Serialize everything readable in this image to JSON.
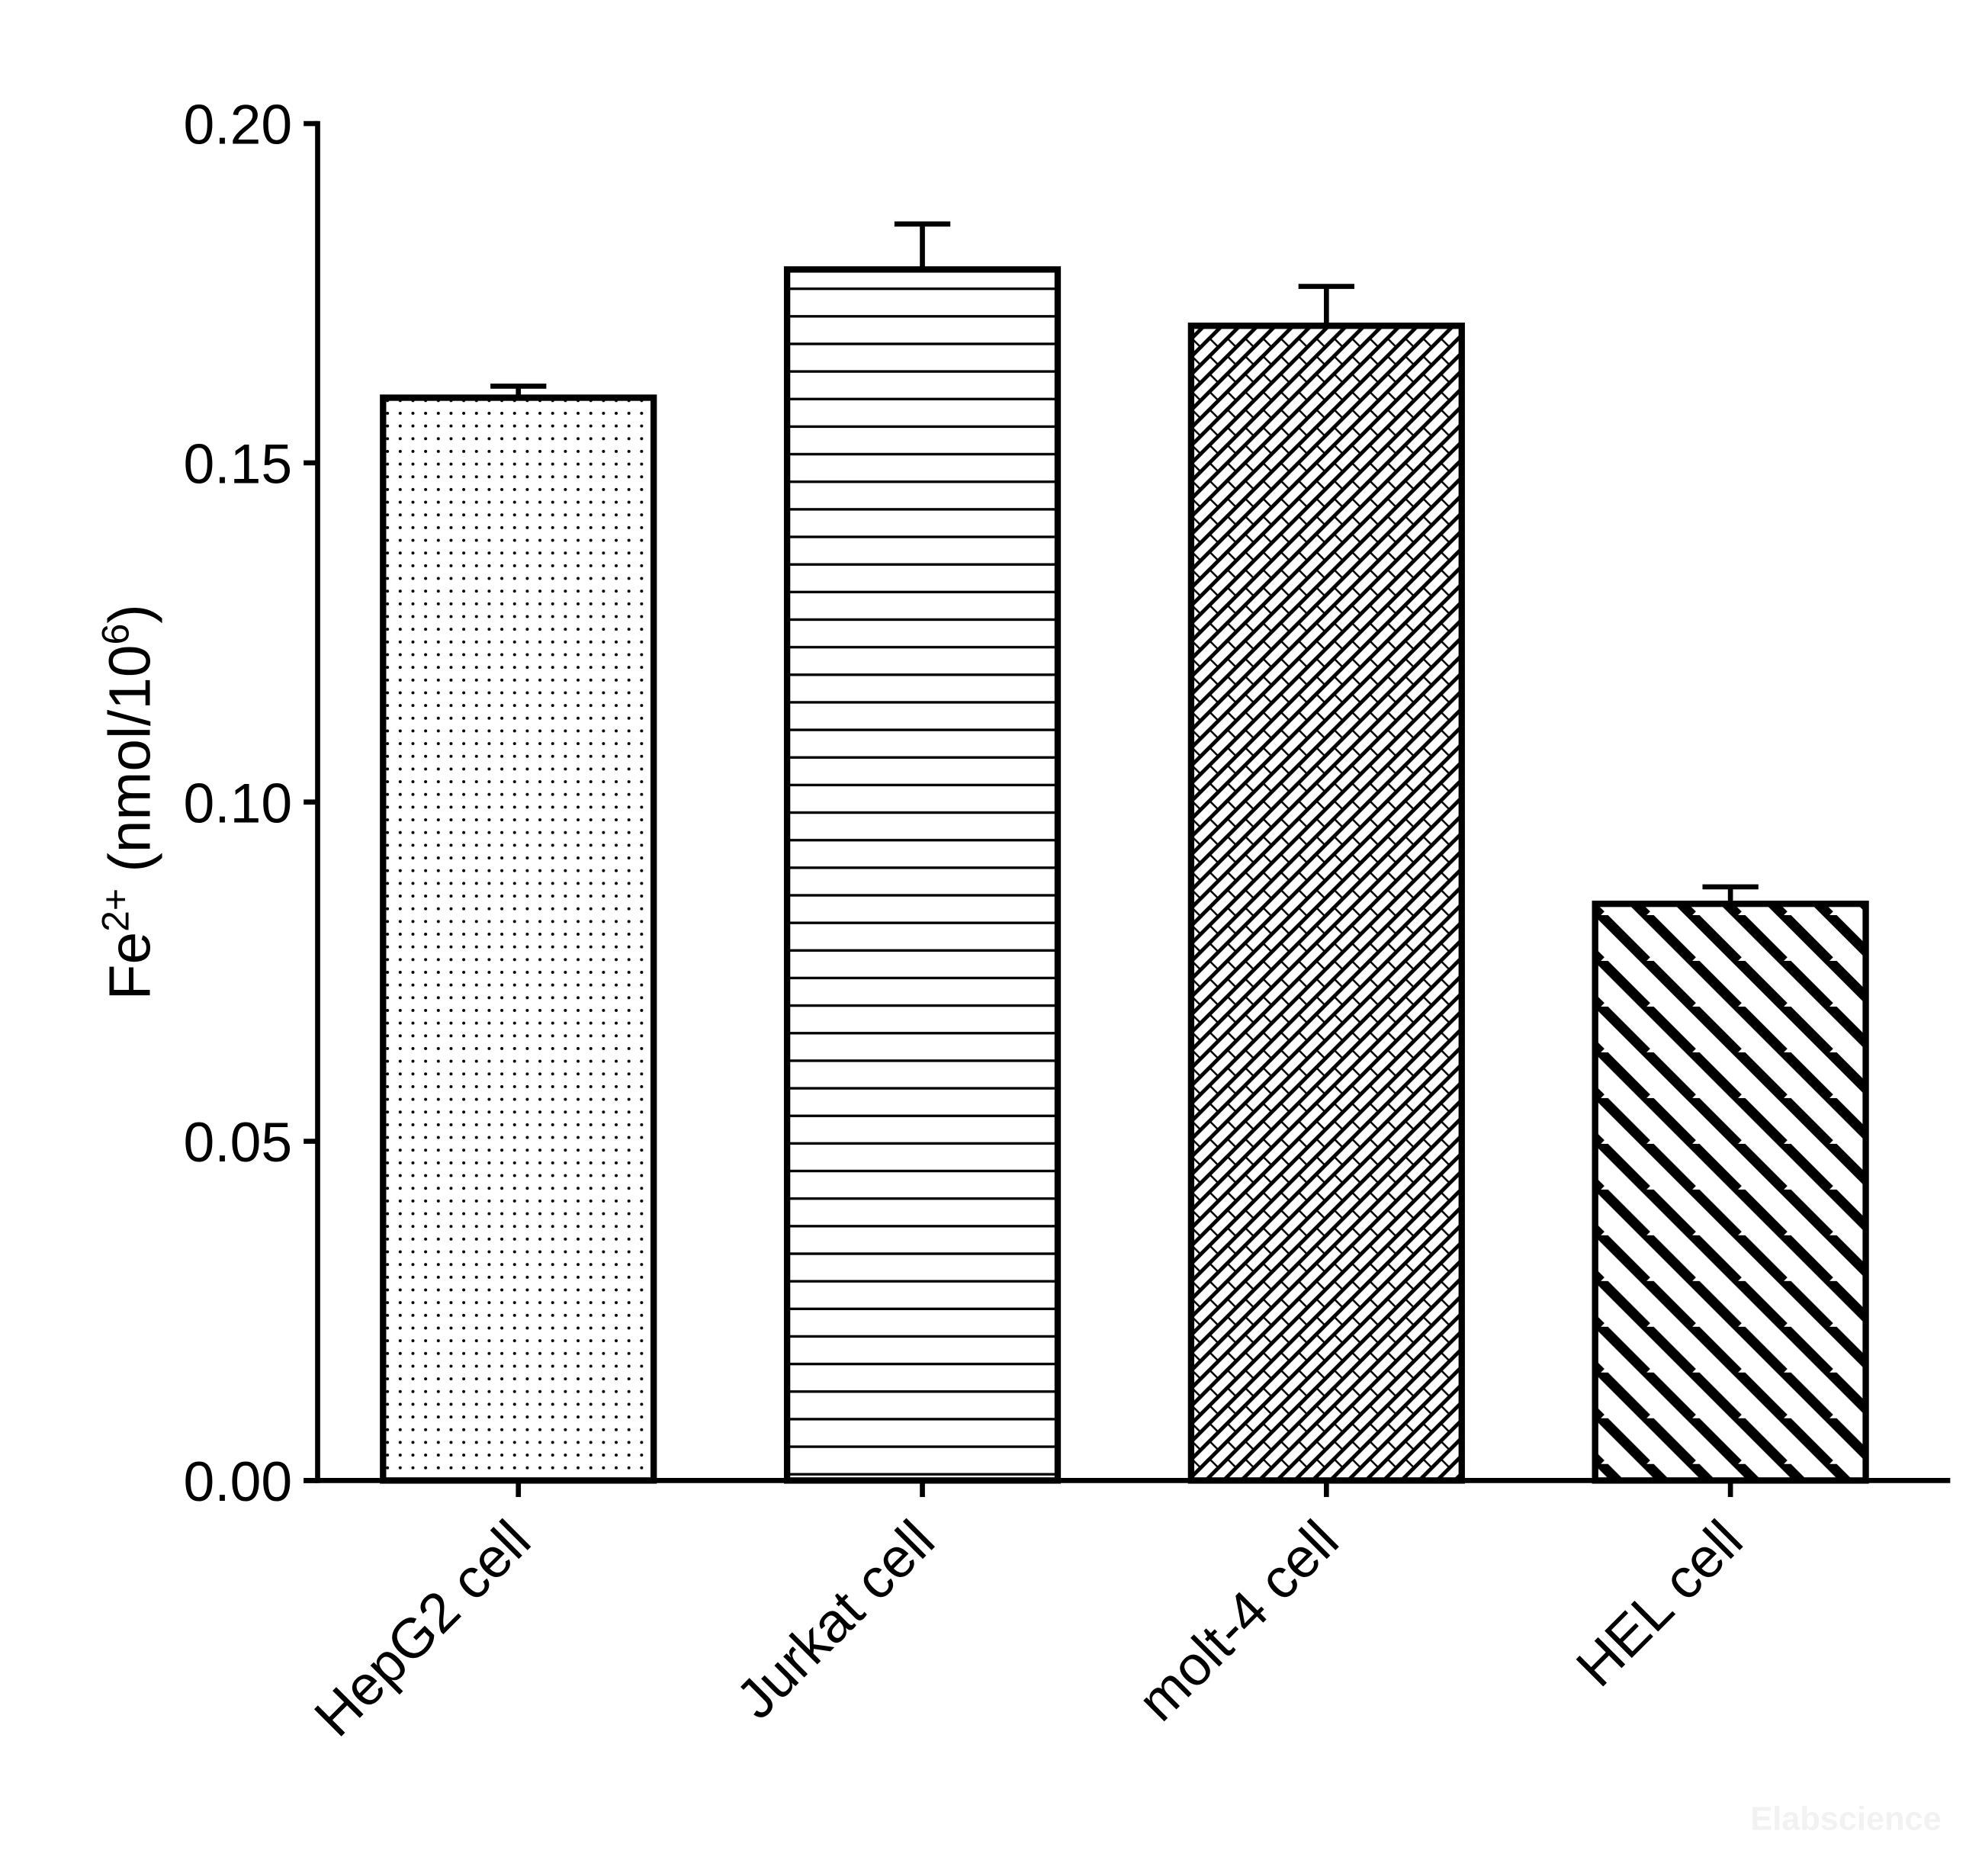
{
  "chart_data": {
    "type": "bar",
    "y_label": [
      "Fe",
      "2+",
      " (nmol/10",
      "6",
      ")"
    ],
    "categories": [
      "HepG2 cell",
      "Jurkat cell",
      "molt-4 cell",
      "HEL cell"
    ],
    "values": [
      0.1596,
      0.1785,
      0.1702,
      0.085
    ],
    "errors": [
      0.0017,
      0.0067,
      0.0058,
      0.0025
    ],
    "patterns": [
      "dots",
      "horizontal",
      "crosshatch",
      "diagonal"
    ],
    "color": "#000000",
    "ylim": [
      0,
      0.2
    ],
    "yticks": [
      {
        "value": 0,
        "label": "0.00"
      },
      {
        "value": 0.05,
        "label": "0.05"
      },
      {
        "value": 0.1,
        "label": "0.10"
      },
      {
        "value": 0.15,
        "label": "0.15"
      },
      {
        "value": 0.2,
        "label": "0.20"
      }
    ],
    "watermark": "Elabscience"
  }
}
